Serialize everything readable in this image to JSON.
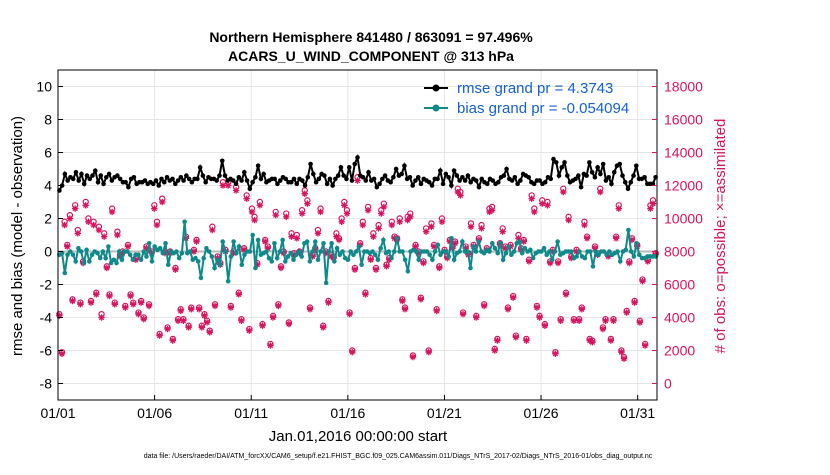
{
  "chart_data": {
    "type": "line",
    "title_line1": "Northern Hemisphere 841480 / 863091 = 97.496%",
    "title_line2": "ACARS_U_WIND_COMPONENT @ 313 hPa",
    "xlabel": "Jan.01,2016 00:00:00 start",
    "ylabel_left": "rmse and bias (model - observation)",
    "ylabel_right": "# of obs: o=possible; ×=assimilated",
    "footnote": "data file: /Users/raeder/DAI/ATM_forcXX/CAM6_setup/f.e21.FHIST_BGC.f09_025.CAM6assim.011/Diags_NTrS_2017-02/Diags_NTrS_2016-01/obs_diag_output.nc",
    "x_ticks": [
      "01/01",
      "01/06",
      "01/11",
      "01/16",
      "01/21",
      "01/26",
      "01/31"
    ],
    "x_tick_days": [
      1,
      6,
      11,
      16,
      21,
      26,
      31
    ],
    "xlim": [
      1,
      32
    ],
    "ylim_left": [
      -9,
      11
    ],
    "yticks_left": [
      "10",
      "8",
      "6",
      "4",
      "2",
      "0",
      "-2",
      "-4",
      "-6",
      "-8"
    ],
    "ylim_right": [
      -1000,
      19000
    ],
    "yticks_right": [
      "18000",
      "16000",
      "14000",
      "12000",
      "10000",
      "8000",
      "6000",
      "4000",
      "2000",
      "0"
    ],
    "legend": {
      "position": "top-right",
      "rmse_label": "rmse grand pr = 4.3743",
      "bias_label": "bias grand pr = -0.054094"
    },
    "colors": {
      "rmse": "#000000",
      "bias": "#0e8a8a",
      "obs": "#d6145f",
      "legend_text": "#1560d4",
      "zero_line": "#bbbbbb",
      "grid": "#e6e6e6"
    },
    "series": [
      {
        "name": "rmse",
        "values": [
          3.7,
          4.0,
          4.7,
          4.3,
          4.5,
          4.4,
          4.8,
          4.3,
          4.7,
          4.1,
          4.6,
          4.4,
          4.6,
          4.9,
          4.2,
          4.6,
          4.1,
          4.5,
          4.7,
          4.3,
          4.5,
          4.6,
          4.4,
          4.2,
          4.2,
          3.9,
          4.4,
          4.5,
          4.1,
          4.2,
          4.2,
          4.3,
          4.1,
          4.2,
          4.1,
          4.3,
          4.0,
          4.4,
          4.2,
          4.5,
          4.3,
          4.4,
          4.1,
          4.3,
          4.5,
          4.3,
          4.6,
          4.4,
          4.2,
          4.4,
          4.4,
          5.1,
          4.6,
          4.2,
          4.5,
          4.4,
          4.4,
          4.3,
          4.6,
          5.5,
          4.6,
          4.3,
          4.4,
          4.3,
          4.1,
          4.5,
          4.3,
          4.8,
          4.3,
          3.8,
          4.2,
          4.5,
          5.2,
          4.4,
          4.7,
          4.2,
          4.3,
          4.4,
          4.4,
          4.1,
          4.3,
          4.5,
          4.4,
          4.2,
          4.2,
          4.4,
          4.1,
          4.4,
          4.3,
          4.0,
          4.5,
          5.3,
          4.7,
          4.2,
          4.4,
          4.7,
          4.6,
          4.1,
          4.4,
          4.0,
          4.4,
          4.6,
          5.1,
          4.6,
          4.4,
          5.1,
          4.3,
          5.3,
          5.7,
          4.6,
          4.5,
          4.3,
          4.8,
          4.3,
          4.4,
          3.9,
          4.1,
          4.4,
          4.6,
          4.3,
          4.2,
          4.5,
          5.0,
          4.6,
          4.7,
          5.2,
          4.4,
          4.5,
          4.0,
          4.3,
          4.5,
          4.1,
          4.4,
          4.3,
          4.2,
          4.0,
          4.4,
          4.4,
          4.9,
          4.1,
          4.7,
          4.5,
          4.0,
          4.9,
          4.6,
          4.3,
          4.5,
          4.3,
          4.6,
          4.2,
          4.4,
          4.3,
          3.9,
          4.4,
          4.2,
          4.1,
          4.4,
          4.3,
          4.1,
          4.2,
          4.5,
          4.6,
          5.0,
          4.4,
          4.3,
          4.5,
          4.1,
          4.3,
          4.7,
          4.6,
          4.5,
          4.2,
          4.1,
          4.3,
          4.3,
          4.1,
          4.2,
          4.5,
          4.4,
          5.6,
          5.4,
          4.6,
          5.1,
          5.4,
          4.6,
          4.2,
          4.3,
          4.4,
          4.6,
          3.9,
          4.7,
          4.6,
          5.4,
          4.8,
          4.5,
          5.1,
          4.7,
          5.3,
          4.3,
          4.5,
          4.1,
          4.8,
          5.2,
          5.3,
          4.6,
          4.2,
          3.8,
          4.2,
          4.6,
          5.2,
          4.4,
          4.4,
          4.5,
          4.1,
          4.1,
          4.1,
          4.5
        ]
      },
      {
        "name": "bias",
        "values": [
          -0.2,
          -0.1,
          -1.3,
          -0.2,
          0.0,
          -0.2,
          -0.6,
          0.2,
          0.0,
          -0.7,
          0.1,
          -0.6,
          -0.2,
          0.0,
          -0.1,
          -0.4,
          0.0,
          -0.4,
          0.3,
          -0.7,
          -0.5,
          -0.7,
          0.0,
          -0.5,
          0.0,
          0.0,
          -0.2,
          -0.5,
          -0.2,
          -0.2,
          -0.5,
          0.0,
          -0.3,
          0.5,
          -0.6,
          0.3,
          0.1,
          0.2,
          -0.1,
          0.5,
          -0.8,
          0.0,
          -0.1,
          0.0,
          -0.4,
          -0.1,
          1.8,
          -0.1,
          0.0,
          -0.5,
          -0.4,
          -0.6,
          -1.6,
          -0.4,
          0.2,
          0.0,
          -0.3,
          -1.0,
          -0.5,
          -0.8,
          0.6,
          0.0,
          -1.8,
          -0.3,
          0.6,
          -0.1,
          0.3,
          -0.8,
          -0.2,
          0.0,
          0.0,
          1.0,
          -1.0,
          0.7,
          -0.2,
          -0.1,
          0.0,
          -0.4,
          -0.6,
          0.5,
          -0.4,
          0.0,
          0.7,
          -0.6,
          -0.3,
          -0.1,
          -0.5,
          -0.2,
          0.0,
          -0.3,
          0.5,
          0.6,
          -0.6,
          0.0,
          0.6,
          -0.5,
          0.0,
          0.5,
          -1.9,
          0.0,
          0.5,
          -0.6,
          0.2,
          -0.2,
          0.0,
          -0.4,
          -0.5,
          0.0,
          -0.2,
          0.0,
          0.3,
          -0.8,
          0.0,
          0.0,
          -0.1,
          0.0,
          -0.2,
          -0.5,
          0.2,
          0.7,
          -0.1,
          0.0,
          -0.4,
          0.0,
          0.8,
          0.0,
          0.0,
          -0.5,
          -1.2,
          0.0,
          0.1,
          0.0,
          -0.5,
          0.0,
          0.0,
          0.0,
          -0.2,
          -0.5,
          0.0,
          0.4,
          -0.2,
          0.0,
          0.0,
          -0.3,
          0.8,
          -0.5,
          -0.1,
          0.0,
          0.6,
          0.0,
          0.0,
          -1.0,
          0.3,
          0.0,
          0.6,
          0.0,
          -0.1,
          0.1,
          0.0,
          0.5,
          0.2,
          -0.1,
          0.5,
          -0.5,
          -0.1,
          0.3,
          -0.2,
          0.0,
          0.5,
          0.6,
          -0.1,
          0.2,
          0.0,
          0.1,
          -0.4,
          -0.1,
          0.0,
          0.0,
          0.2,
          -0.2,
          0.0,
          -0.5,
          0.0,
          0.6,
          -0.2,
          -0.1,
          0.0,
          0.0,
          0.0,
          -0.4,
          -0.3,
          0.0,
          -0.3,
          -0.4,
          0.0,
          0.0,
          -0.9,
          0.0,
          -0.2,
          0.0,
          0.0,
          -0.2,
          0.0,
          -0.2,
          -0.1,
          0.0,
          -0.6,
          0.0,
          0.1,
          1.3,
          0.0,
          -0.3,
          0.5,
          -0.2,
          -0.4,
          -0.4,
          -0.3,
          -0.3,
          -0.3,
          -0.3
        ]
      }
    ],
    "obs": {
      "possible": [
        4200,
        1900,
        9800,
        8400,
        10200,
        5100,
        10800,
        9300,
        4900,
        7400,
        11000,
        10000,
        5000,
        9800,
        5500,
        9500,
        4200,
        9100,
        7100,
        5400,
        10600,
        4900,
        9200,
        7800,
        8000,
        4700,
        8400,
        5400,
        4900,
        7600,
        4300,
        5000,
        4000,
        8300,
        4800,
        8000,
        10800,
        9800,
        3000,
        11200,
        8000,
        3400,
        8000,
        2700,
        7000,
        3900,
        4500,
        3900,
        8900,
        3500,
        4600,
        8100,
        8700,
        4600,
        3500,
        4200,
        3800,
        3200,
        9500,
        4800,
        7700,
        7300,
        12200,
        8100,
        12200,
        4700,
        8000,
        11900,
        5500,
        3900,
        8200,
        11400,
        3300,
        10600,
        10100,
        7300,
        11000,
        3600,
        8700,
        8300,
        2400,
        4100,
        10400,
        4800,
        7100,
        8000,
        10300,
        3700,
        9100,
        7900,
        9000,
        8000,
        10500,
        11700,
        11100,
        4600,
        7800,
        8200,
        9300,
        10600,
        3500,
        8000,
        5000,
        7800,
        7700,
        9100,
        8800,
        10000,
        11000,
        10500,
        4300,
        2000,
        7000,
        12500,
        8500,
        9800,
        5500,
        10700,
        7600,
        9100,
        7000,
        9600,
        10500,
        10900,
        7200,
        7600,
        9800,
        8900,
        8800,
        10000,
        5100,
        4600,
        10100,
        10300,
        1700,
        8400,
        8000,
        5200,
        7400,
        9400,
        2000,
        9700,
        8400,
        4500,
        7100,
        10000,
        8100,
        7700,
        8700,
        8300,
        8600,
        11800,
        11600,
        4300,
        8300,
        7900,
        9700,
        8400,
        4100,
        8800,
        9600,
        4800,
        8200,
        10600,
        10700,
        2100,
        2700,
        8500,
        9400,
        8300,
        4600,
        8400,
        5300,
        2900,
        9000,
        8200,
        8700,
        2700,
        7500,
        11400,
        10600,
        4700,
        4100,
        11100,
        3600,
        11000,
        7400,
        8100,
        1900,
        7400,
        3900,
        11800,
        5500,
        10100,
        7700,
        3900,
        8100,
        3900,
        4600,
        9800,
        8900,
        2700,
        2600,
        8300,
        7900,
        11800,
        3400,
        3900,
        7800,
        2700,
        3900,
        8900,
        10800,
        2000,
        1600,
        4400,
        7400,
        8800,
        5000,
        8400,
        3800,
        6300,
        2400,
        7500,
        10800,
        11100,
        7900
      ],
      "assimilated": [
        4100,
        1800,
        9600,
        8300,
        10000,
        5000,
        10600,
        9100,
        4800,
        7300,
        10800,
        9800,
        4900,
        9600,
        5400,
        9300,
        4000,
        8900,
        7000,
        5300,
        10400,
        4800,
        9000,
        7700,
        7900,
        4600,
        8300,
        5300,
        4800,
        7500,
        4200,
        4900,
        3900,
        8200,
        4700,
        7900,
        10600,
        9600,
        2900,
        11000,
        7900,
        3300,
        7900,
        2600,
        6900,
        3800,
        4400,
        3800,
        8800,
        3400,
        4500,
        8000,
        8600,
        4500,
        3400,
        4100,
        3700,
        3100,
        9300,
        4700,
        7600,
        7200,
        12000,
        8000,
        12000,
        4600,
        7900,
        11700,
        5400,
        3800,
        8100,
        11200,
        3200,
        10400,
        9900,
        7200,
        10800,
        3500,
        8600,
        8200,
        2300,
        4000,
        10200,
        4700,
        7000,
        7900,
        10100,
        3600,
        8900,
        7800,
        8800,
        7900,
        10300,
        11500,
        10900,
        4500,
        7700,
        8100,
        9100,
        10400,
        3400,
        7900,
        4900,
        7700,
        7600,
        8900,
        8700,
        9800,
        10800,
        10300,
        4200,
        1900,
        6900,
        12300,
        8400,
        9600,
        5400,
        10500,
        7500,
        8900,
        6900,
        9400,
        10300,
        10700,
        7100,
        7500,
        9600,
        8800,
        8700,
        9800,
        5000,
        4500,
        9900,
        10100,
        1600,
        8300,
        7900,
        5100,
        7300,
        9200,
        1900,
        9500,
        8300,
        4400,
        7000,
        9800,
        8000,
        7600,
        8600,
        8200,
        8500,
        11600,
        11400,
        4200,
        8200,
        7800,
        9500,
        8300,
        4000,
        8700,
        9400,
        4700,
        8100,
        10400,
        10500,
        2000,
        2600,
        8400,
        9200,
        8200,
        4500,
        8300,
        5200,
        2800,
        8800,
        8100,
        8600,
        2600,
        7400,
        11200,
        10400,
        4600,
        4000,
        10900,
        3500,
        10800,
        7300,
        8000,
        1800,
        7300,
        3800,
        11600,
        5400,
        9900,
        7600,
        3800,
        8000,
        3800,
        4500,
        9600,
        8800,
        2600,
        2500,
        8200,
        7800,
        11600,
        3300,
        3800,
        7700,
        2600,
        3800,
        8800,
        10600,
        1900,
        1500,
        4300,
        7300,
        8700,
        4900,
        8300,
        3700,
        6200,
        2300,
        7400,
        10600,
        10900,
        7800
      ]
    }
  }
}
